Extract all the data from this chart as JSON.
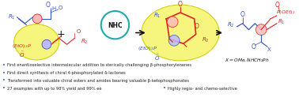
{
  "background_color": "#ffffff",
  "fig_width": 3.78,
  "fig_height": 1.28,
  "dpi": 100,
  "bullet_points": [
    "First enantioselective intermolecular addition to sterically challenging β-phosphorylenones",
    "First direct synthesis of chiral 4-phosphorylated δ-lactones",
    "Transformed into valuable chiral esters and amides bearing valuable β-ketophosphonates",
    "27 examples with up to 98% yield and 99% ee"
  ],
  "bullet_point5": "Highly regio- and chemo-selective",
  "bullet_color": "#3355bb",
  "text_color": "#222222",
  "red_color": "#dd2222",
  "blue_color": "#3355bb",
  "cyan_color": "#22aaaa",
  "yellow_fill": "#f5f570",
  "yellow_edge": "#cccc00"
}
